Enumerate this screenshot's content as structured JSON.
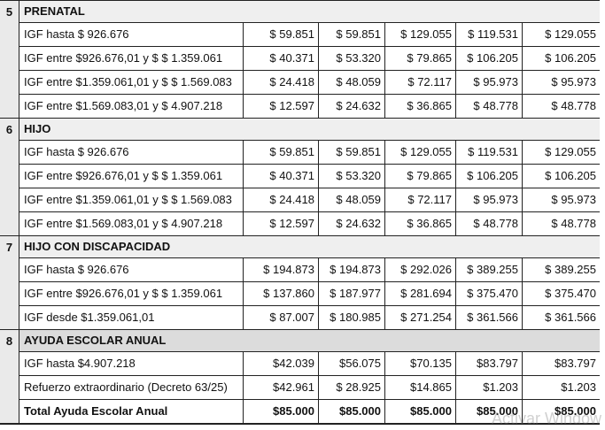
{
  "sections": [
    {
      "number": "5",
      "title": "PRENATAL",
      "rows": [
        {
          "label": "IGF hasta $ 926.676",
          "values": [
            "$ 59.851",
            "$ 59.851",
            "$ 129.055",
            "$ 119.531",
            "$ 129.055"
          ]
        },
        {
          "label": "IGF entre $926.676,01 y $ $ 1.359.061",
          "values": [
            "$ 40.371",
            "$ 53.320",
            "$ 79.865",
            "$ 106.205",
            "$ 106.205"
          ]
        },
        {
          "label": "IGF entre $1.359.061,01 y $ $ 1.569.083",
          "values": [
            "$ 24.418",
            "$ 48.059",
            "$ 72.117",
            "$ 95.973",
            "$ 95.973"
          ]
        },
        {
          "label": "IGF entre $1.569.083,01 y $ 4.907.218",
          "values": [
            "$ 12.597",
            "$ 24.632",
            "$ 36.865",
            "$ 48.778",
            "$ 48.778"
          ]
        }
      ]
    },
    {
      "number": "6",
      "title": "HIJO",
      "rows": [
        {
          "label": "IGF hasta $ 926.676",
          "values": [
            "$ 59.851",
            "$ 59.851",
            "$ 129.055",
            "$ 119.531",
            "$ 129.055"
          ]
        },
        {
          "label": "IGF entre $926.676,01 y $ $ 1.359.061",
          "values": [
            "$ 40.371",
            "$ 53.320",
            "$ 79.865",
            "$ 106.205",
            "$ 106.205"
          ]
        },
        {
          "label": "IGF entre $1.359.061,01 y $ $ 1.569.083",
          "values": [
            "$ 24.418",
            "$ 48.059",
            "$ 72.117",
            "$ 95.973",
            "$ 95.973"
          ]
        },
        {
          "label": "IGF entre $1.569.083,01 y $ 4.907.218",
          "values": [
            "$ 12.597",
            "$ 24.632",
            "$ 36.865",
            "$ 48.778",
            "$ 48.778"
          ]
        }
      ]
    },
    {
      "number": "7",
      "title": "HIJO CON DISCAPACIDAD",
      "rows": [
        {
          "label": "IGF hasta $ 926.676",
          "values": [
            "$ 194.873",
            "$ 194.873",
            "$ 292.026",
            "$ 389.255",
            "$ 389.255"
          ]
        },
        {
          "label": "IGF entre $926.676,01 y $ $ 1.359.061",
          "values": [
            "$ 137.860",
            "$ 187.977",
            "$ 281.694",
            "$ 375.470",
            "$ 375.470"
          ]
        },
        {
          "label": "IGF desde $1.359.061,01",
          "values": [
            "$ 87.007",
            "$ 180.985",
            "$ 271.254",
            "$ 361.566",
            "$ 361.566"
          ]
        }
      ]
    },
    {
      "number": "8",
      "title": "AYUDA ESCOLAR ANUAL",
      "dark": true,
      "rows": [
        {
          "label": "IGF hasta $4.907.218",
          "values": [
            "$42.039",
            "$56.075",
            "$70.135",
            "$83.797",
            "$83.797"
          ]
        },
        {
          "label": "Refuerzo extraordinario (Decreto 63/25)",
          "values": [
            "$42.961",
            "$ 28.925",
            "$14.865",
            "$1.203",
            "$1.203"
          ]
        },
        {
          "label": "Total Ayuda Escolar Anual",
          "bold": true,
          "values": [
            "$85.000",
            "$85.000",
            "$85.000",
            "$85.000",
            "$85.000"
          ]
        }
      ]
    }
  ],
  "watermark": "Activar Window"
}
